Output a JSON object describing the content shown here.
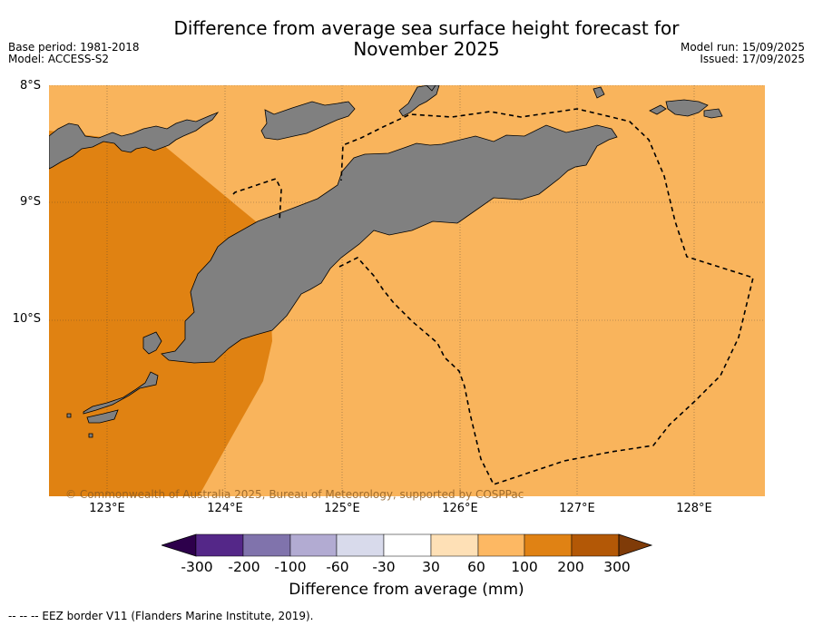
{
  "title": {
    "line1": "Difference from average sea surface height forecast for",
    "line2": "November 2025"
  },
  "meta": {
    "base_period": "Base period: 1981-2018",
    "model": "Model: ACCESS-S2",
    "model_run": "Model run: 15/09/2025",
    "issued": "Issued: 17/09/2025"
  },
  "map": {
    "lat_labels": [
      "8°S",
      "9°S",
      "10°S"
    ],
    "lon_labels": [
      "123°E",
      "124°E",
      "125°E",
      "126°E",
      "127°E",
      "128°E"
    ],
    "copyright": "© Commonwealth of Australia 2025, Bureau of Meteorology, supported by COSPPac",
    "colors": {
      "land": "#808080",
      "class_60_100": "#f9b45c",
      "class_100_200": "#e08212"
    }
  },
  "colorbar": {
    "label": "Difference from average (mm)",
    "ticks": [
      "-300",
      "-200",
      "-100",
      "-60",
      "-30",
      "30",
      "60",
      "100",
      "200",
      "300"
    ],
    "colors": [
      "#2d004b",
      "#542788",
      "#8073ac",
      "#b2abd2",
      "#d8daeb",
      "#ffffff",
      "#fee0b6",
      "#fdb863",
      "#e08214",
      "#b35806",
      "#7f3b08"
    ]
  },
  "legend_note": "--  --  -- EEZ border V11 (Flanders Marine Institute, 2019)."
}
